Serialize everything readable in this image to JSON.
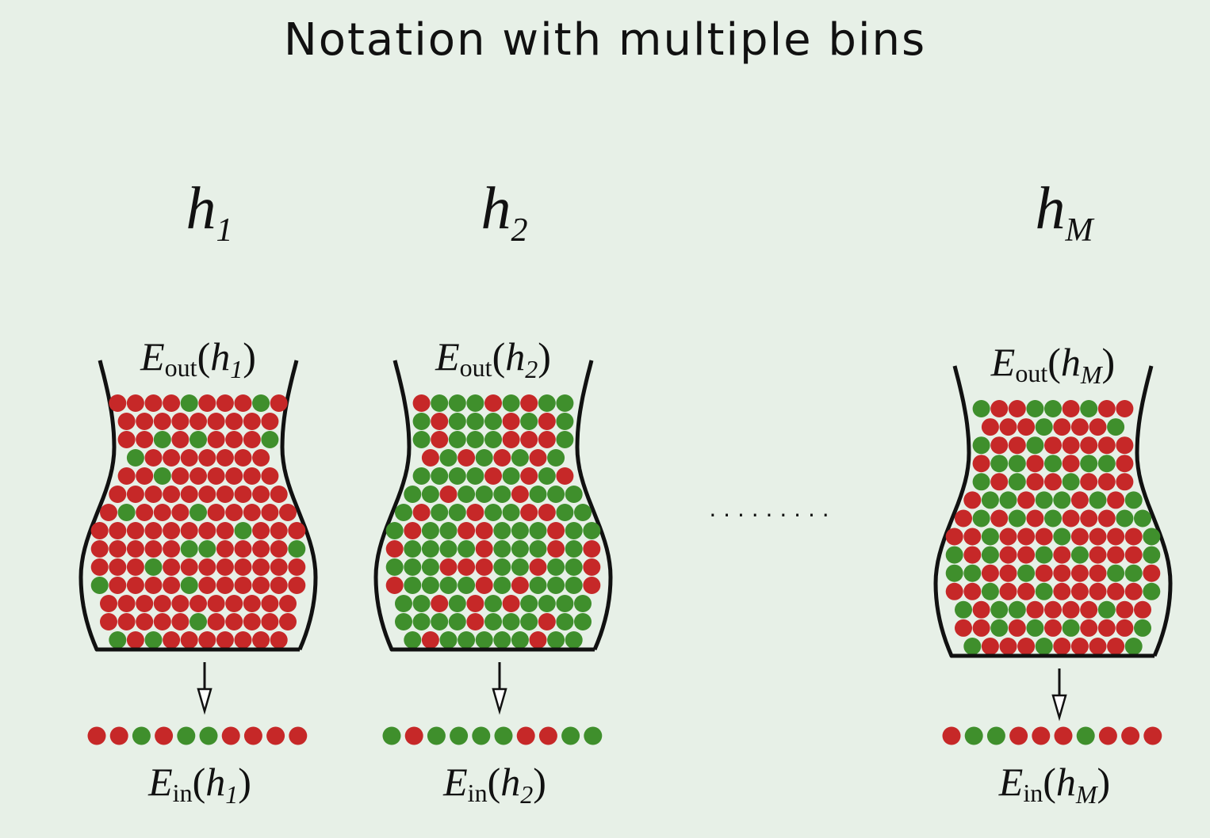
{
  "title": "Notation with multiple bins",
  "colors": {
    "background": "#e7f0e7",
    "red": "#c62828",
    "green": "#3f8f2c",
    "ink": "#111111"
  },
  "ellipsis": ". . . . . . . . .",
  "bins": [
    {
      "hypothesis": {
        "base": "h",
        "subscript": "1"
      },
      "eout": {
        "letter": "E",
        "sub": "out",
        "arg_base": "h",
        "arg_sub": "1"
      },
      "ein": {
        "letter": "E",
        "sub": "in",
        "arg_base": "h",
        "arg_sub": "1"
      },
      "sample": [
        "red",
        "red",
        "green",
        "red",
        "green",
        "green",
        "red",
        "red",
        "red",
        "red"
      ],
      "marble_rows": [
        "RRRRGRRRGR",
        "RRRRRRRRR",
        "RRGRGRRRG",
        "GRRRRRRR",
        "RRGRRRRRR",
        "RRRRRRRRRR",
        "RGRRRGRRRRR",
        "RRRRRRRRGRRR",
        "RRRRRGGRRRRG",
        "RRRGRRRRRRRR",
        "GRRRRGRRRRRR",
        "RRRRRRRRRRR",
        "RRRRRGRRRRR",
        "GRGRRRRRRR"
      ]
    },
    {
      "hypothesis": {
        "base": "h",
        "subscript": "2"
      },
      "eout": {
        "letter": "E",
        "sub": "out",
        "arg_base": "h",
        "arg_sub": "2"
      },
      "ein": {
        "letter": "E",
        "sub": "in",
        "arg_base": "h",
        "arg_sub": "2"
      },
      "sample": [
        "green",
        "red",
        "green",
        "green",
        "green",
        "green",
        "red",
        "red",
        "green",
        "green"
      ],
      "marble_rows": [
        "RGGGRGRGG",
        "GRGGGRGRG",
        "GRGGGRRRG",
        "RGRGRGRG",
        "GGGGRGRGR",
        "GGRGGGRGGG",
        "GRGGRGGRRGG",
        "GRGGRRGGGRGG",
        "RGGGGRGGGRGR",
        "GGGRRRGGRGGR",
        "RGGGGRGRGGGR",
        "GGRGRGRGGGG",
        "GGGGRGGGRGG",
        "GRGGGGGRGG"
      ]
    },
    {
      "hypothesis": {
        "base": "h",
        "subscript": "M"
      },
      "eout": {
        "letter": "E",
        "sub": "out",
        "arg_base": "h",
        "arg_sub": "M"
      },
      "ein": {
        "letter": "E",
        "sub": "in",
        "arg_base": "h",
        "arg_sub": "M"
      },
      "sample": [
        "red",
        "green",
        "green",
        "red",
        "red",
        "red",
        "green",
        "red",
        "red",
        "red"
      ],
      "marble_rows": [
        "GRRGGRGRR",
        "RRRGRRRG",
        "GRRGRRRRR",
        "RGGRGRGGR",
        "GRGRRGRRR",
        "RGGRGGRGRG",
        "RGRGRGRRRGG",
        "RRGRRRGRRRRG",
        "GRGRRGRGRRRG",
        "GGRRGRRRRGGR",
        "RRGRRGRRRRRG",
        "GRGGRRRRGRR",
        "RRGRGRGRRRG",
        "GRRRGRRRRG"
      ]
    }
  ]
}
